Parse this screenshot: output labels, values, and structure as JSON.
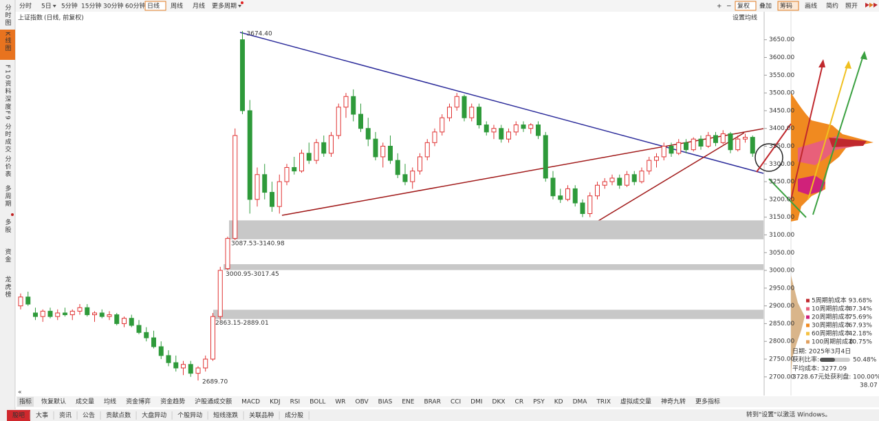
{
  "toolbar": {
    "periods": [
      "分时",
      "5日",
      "5分钟",
      "15分钟",
      "30分钟",
      "60分钟",
      "日线",
      "周线",
      "月线",
      "更多周期"
    ],
    "right": [
      "复权",
      "叠加",
      "筹码",
      "画线",
      "简约",
      "照开"
    ]
  },
  "sidebar": [
    "分时图",
    "K线图",
    "F10资料",
    "深度F9",
    "分时成交",
    "分价表",
    "多周期",
    "多股",
    "资金",
    "龙虎榜"
  ],
  "chart_header": {
    "title": "上证指数",
    "subtitle": "(日线, 前复权)",
    "ma_setting": "设置均线"
  },
  "chart_data": {
    "type": "candlestick",
    "candles": [
      [
        2900,
        2935,
        2890,
        2925
      ],
      [
        2925,
        2940,
        2900,
        2905
      ],
      [
        2880,
        2895,
        2860,
        2870
      ],
      [
        2870,
        2890,
        2855,
        2885
      ],
      [
        2885,
        2895,
        2865,
        2870
      ],
      [
        2870,
        2890,
        2860,
        2880
      ],
      [
        2880,
        2895,
        2870,
        2875
      ],
      [
        2875,
        2890,
        2860,
        2885
      ],
      [
        2885,
        2905,
        2875,
        2895
      ],
      [
        2895,
        2905,
        2870,
        2875
      ],
      [
        2875,
        2885,
        2855,
        2880
      ],
      [
        2880,
        2890,
        2865,
        2870
      ],
      [
        2870,
        2885,
        2860,
        2875
      ],
      [
        2875,
        2880,
        2845,
        2850
      ],
      [
        2850,
        2870,
        2840,
        2865
      ],
      [
        2865,
        2875,
        2840,
        2845
      ],
      [
        2845,
        2860,
        2820,
        2825
      ],
      [
        2825,
        2840,
        2800,
        2810
      ],
      [
        2810,
        2830,
        2780,
        2785
      ],
      [
        2785,
        2800,
        2750,
        2760
      ],
      [
        2760,
        2775,
        2730,
        2740
      ],
      [
        2740,
        2760,
        2715,
        2725
      ],
      [
        2725,
        2745,
        2705,
        2735
      ],
      [
        2735,
        2745,
        2700,
        2710
      ],
      [
        2710,
        2730,
        2689.7,
        2725
      ],
      [
        2725,
        2760,
        2715,
        2750
      ],
      [
        2750,
        2880,
        2745,
        2870
      ],
      [
        2870,
        3010,
        2860,
        3000
      ],
      [
        3005,
        3095,
        3000,
        3090
      ],
      [
        3090,
        3400,
        3085,
        3380
      ],
      [
        3650,
        3674.4,
        3440,
        3450
      ],
      [
        3450,
        3480,
        3160,
        3200
      ],
      [
        3200,
        3290,
        3180,
        3270
      ],
      [
        3270,
        3300,
        3200,
        3220
      ],
      [
        3220,
        3250,
        3165,
        3180
      ],
      [
        3180,
        3270,
        3160,
        3250
      ],
      [
        3250,
        3300,
        3240,
        3290
      ],
      [
        3290,
        3320,
        3270,
        3280
      ],
      [
        3280,
        3340,
        3275,
        3330
      ],
      [
        3330,
        3360,
        3300,
        3310
      ],
      [
        3310,
        3370,
        3300,
        3360
      ],
      [
        3360,
        3380,
        3320,
        3330
      ],
      [
        3330,
        3390,
        3320,
        3380
      ],
      [
        3380,
        3470,
        3370,
        3460
      ],
      [
        3460,
        3500,
        3430,
        3490
      ],
      [
        3490,
        3510,
        3420,
        3440
      ],
      [
        3440,
        3470,
        3390,
        3400
      ],
      [
        3400,
        3430,
        3350,
        3370
      ],
      [
        3370,
        3390,
        3310,
        3320
      ],
      [
        3320,
        3360,
        3290,
        3350
      ],
      [
        3350,
        3380,
        3300,
        3310
      ],
      [
        3310,
        3330,
        3260,
        3270
      ],
      [
        3270,
        3300,
        3240,
        3250
      ],
      [
        3250,
        3290,
        3230,
        3280
      ],
      [
        3280,
        3330,
        3270,
        3320
      ],
      [
        3320,
        3370,
        3310,
        3360
      ],
      [
        3360,
        3400,
        3350,
        3390
      ],
      [
        3390,
        3440,
        3380,
        3430
      ],
      [
        3430,
        3470,
        3420,
        3460
      ],
      [
        3460,
        3500,
        3450,
        3490
      ],
      [
        3490,
        3495,
        3420,
        3430
      ],
      [
        3430,
        3470,
        3420,
        3460
      ],
      [
        3460,
        3470,
        3400,
        3410
      ],
      [
        3410,
        3420,
        3380,
        3390
      ],
      [
        3390,
        3410,
        3370,
        3400
      ],
      [
        3400,
        3410,
        3360,
        3370
      ],
      [
        3370,
        3400,
        3360,
        3390
      ],
      [
        3390,
        3420,
        3380,
        3410
      ],
      [
        3410,
        3420,
        3390,
        3400
      ],
      [
        3400,
        3415,
        3385,
        3410
      ],
      [
        3410,
        3420,
        3370,
        3380
      ],
      [
        3380,
        3390,
        3250,
        3260
      ],
      [
        3260,
        3280,
        3200,
        3210
      ],
      [
        3210,
        3230,
        3190,
        3200
      ],
      [
        3200,
        3240,
        3195,
        3230
      ],
      [
        3230,
        3240,
        3180,
        3190
      ],
      [
        3190,
        3200,
        3150,
        3160
      ],
      [
        3160,
        3220,
        3150,
        3210
      ],
      [
        3210,
        3250,
        3200,
        3240
      ],
      [
        3240,
        3260,
        3230,
        3250
      ],
      [
        3250,
        3270,
        3240,
        3260
      ],
      [
        3260,
        3270,
        3230,
        3240
      ],
      [
        3240,
        3280,
        3235,
        3270
      ],
      [
        3270,
        3280,
        3240,
        3250
      ],
      [
        3250,
        3290,
        3245,
        3280
      ],
      [
        3280,
        3320,
        3270,
        3310
      ],
      [
        3310,
        3330,
        3290,
        3320
      ],
      [
        3320,
        3360,
        3310,
        3350
      ],
      [
        3350,
        3360,
        3320,
        3330
      ],
      [
        3330,
        3370,
        3325,
        3360
      ],
      [
        3360,
        3370,
        3330,
        3340
      ],
      [
        3340,
        3375,
        3335,
        3370
      ],
      [
        3370,
        3380,
        3340,
        3350
      ],
      [
        3350,
        3390,
        3345,
        3380
      ],
      [
        3380,
        3390,
        3350,
        3360
      ],
      [
        3360,
        3395,
        3355,
        3385
      ],
      [
        3385,
        3390,
        3330,
        3340
      ],
      [
        3340,
        3380,
        3335,
        3370
      ],
      [
        3370,
        3385,
        3360,
        3375
      ],
      [
        3375,
        3380,
        3320,
        3330
      ]
    ],
    "up_color": "#e03030",
    "down_color": "#2e9a3a",
    "ylim": [
      2657,
      3727
    ],
    "yticks": [
      {
        "value": 2700,
        "label": "2700.00"
      },
      {
        "value": 2750,
        "label": "2750.00"
      },
      {
        "value": 2800,
        "label": "2800.00"
      },
      {
        "value": 2850,
        "label": "2850.00"
      },
      {
        "value": 2900,
        "label": "2900.00"
      },
      {
        "value": 2950,
        "label": "2950.00"
      },
      {
        "value": 3000,
        "label": "3000.00"
      },
      {
        "value": 3050,
        "label": "3050.00"
      },
      {
        "value": 3100,
        "label": "3100.00"
      },
      {
        "value": 3150,
        "label": "3150.00"
      },
      {
        "value": 3200,
        "label": "3200.00"
      },
      {
        "value": 3250,
        "label": "3250.00"
      },
      {
        "value": 3300,
        "label": "3300.00"
      },
      {
        "value": 3350,
        "label": "3350.00"
      },
      {
        "value": 3400,
        "label": "3400.00"
      },
      {
        "value": 3450,
        "label": "3450.00"
      },
      {
        "value": 3500,
        "label": "3500.00"
      },
      {
        "value": 3550,
        "label": "3550.00"
      },
      {
        "value": 3600,
        "label": "3600.00"
      },
      {
        "value": 3650,
        "label": "3650.00"
      }
    ],
    "gaps": [
      {
        "low": 3087.53,
        "high": 3140.98,
        "label": "3087.53-3140.98"
      },
      {
        "low": 3000.95,
        "high": 3017.45,
        "label": "3000.95-3017.45"
      },
      {
        "low": 2863.15,
        "high": 2889.01,
        "label": "2863.15-2889.01"
      }
    ],
    "high_label": "3674.40",
    "low_label": "2689.70"
  },
  "cost_panel": {
    "legend": [
      {
        "label": "5周期前成本",
        "value": "93.68%",
        "color": "#c0282d"
      },
      {
        "label": "10周期前成本",
        "value": "87.34%",
        "color": "#e8607a"
      },
      {
        "label": "20周期前成本",
        "value": "75.69%",
        "color": "#d0217a"
      },
      {
        "label": "30周期前成本",
        "value": "67.93%",
        "color": "#f08a20"
      },
      {
        "label": "60周期前成本",
        "value": "42.18%",
        "color": "#f5c040"
      },
      {
        "label": "100周期前成本",
        "value": "10.75%",
        "color": "#e0a060"
      }
    ],
    "info": [
      "日期: 2025年3月4日",
      "获利比率:",
      "50.48%",
      "平均成本: 3277.09",
      "3728.67元处获利盘: 100.00%",
      "38.07"
    ]
  },
  "indicator_tabs": [
    "指标",
    "恢复默认",
    "成交量",
    "均线",
    "资金博弈",
    "资金趋势",
    "沪股通成交额",
    "MACD",
    "KDJ",
    "RSI",
    "BOLL",
    "WR",
    "OBV",
    "BIAS",
    "ENE",
    "BRAR",
    "CCI",
    "DMI",
    "DKX",
    "CR",
    "PSY",
    "KD",
    "DMA",
    "TRIX",
    "虚拟成交量",
    "神奇九转",
    "更多指标"
  ],
  "bottom_tabs": [
    "股吧",
    "大事",
    "资讯",
    "公告",
    "贡献点数",
    "大盘异动",
    "个股异动",
    "短线涨跌",
    "关联品种",
    "成分股"
  ],
  "watermark": "转到\"设置\"以激活 Windows。"
}
